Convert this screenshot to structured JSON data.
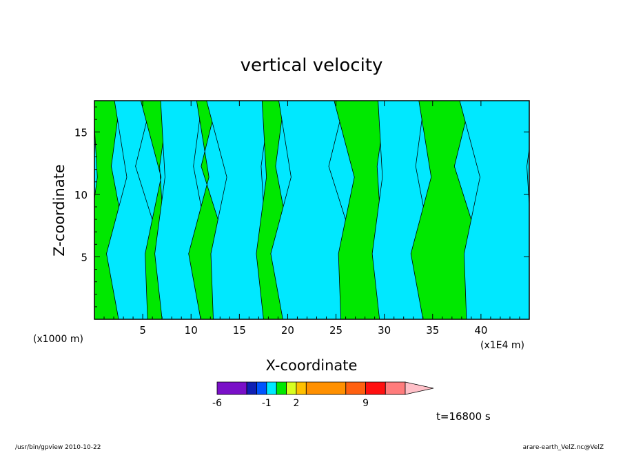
{
  "colors": {
    "background": "#ffffff",
    "frame": "#000000",
    "contour": "#000000",
    "fill_cyan": "#00e8ff",
    "fill_green": "#00e800"
  },
  "chart_data": {
    "type": "heatmap",
    "title": "vertical velocity",
    "xlabel": "X-coordinate",
    "ylabel": "Z-coordinate",
    "x_unit_left": "(x1000 m)",
    "x_unit_right": "(x1E4 m)",
    "xlim": [
      0,
      45
    ],
    "ylim": [
      0,
      17.5
    ],
    "xticks": [
      5,
      10,
      15,
      20,
      25,
      30,
      35,
      40
    ],
    "yticks": [
      5,
      10,
      15
    ],
    "xtick_labels": [
      "5",
      "10",
      "15",
      "20",
      "25",
      "30",
      "35",
      "40"
    ],
    "ytick_labels": [
      "5",
      "10",
      "15"
    ],
    "colorbar": {
      "labels": [
        {
          "text": "-6",
          "at": -6
        },
        {
          "text": "-1",
          "at": -1
        },
        {
          "text": "2",
          "at": 2
        },
        {
          "text": "9",
          "at": 9
        }
      ],
      "levels": [
        -6,
        -3,
        -2,
        -1,
        0,
        1,
        2,
        3,
        7,
        9,
        11,
        13
      ],
      "colors": [
        "#7a10c8",
        "#1020b4",
        "#0055ff",
        "#00e8ff",
        "#00e800",
        "#d8ff20",
        "#ffc000",
        "#ff9000",
        "#ff6010",
        "#ff1010",
        "#ff7c7c",
        "#ffc0c8"
      ],
      "extend": "max"
    },
    "bands": [
      {
        "x0": 0,
        "x1": 2.5,
        "value": "green"
      },
      {
        "x0": 2.5,
        "x1": 5.5,
        "value": "cyan"
      },
      {
        "x0": 5.5,
        "x1": 7,
        "value": "green"
      },
      {
        "x0": 7,
        "x1": 11,
        "value": "cyan"
      },
      {
        "x0": 11,
        "x1": 12.3,
        "value": "green"
      },
      {
        "x0": 12.3,
        "x1": 17.5,
        "value": "cyan"
      },
      {
        "x0": 17.5,
        "x1": 19.5,
        "value": "green"
      },
      {
        "x0": 19.5,
        "x1": 25.5,
        "value": "cyan"
      },
      {
        "x0": 25.5,
        "x1": 29.5,
        "value": "green"
      },
      {
        "x0": 29.5,
        "x1": 34,
        "value": "cyan"
      },
      {
        "x0": 34,
        "x1": 38.5,
        "value": "green"
      },
      {
        "x0": 38.5,
        "x1": 45,
        "value": "cyan"
      }
    ]
  },
  "annotations": {
    "time": "t=16800 s",
    "footer_left": "/usr/bin/gpview  2010-10-22",
    "footer_right": "arare-earth_VelZ.nc@VelZ"
  }
}
